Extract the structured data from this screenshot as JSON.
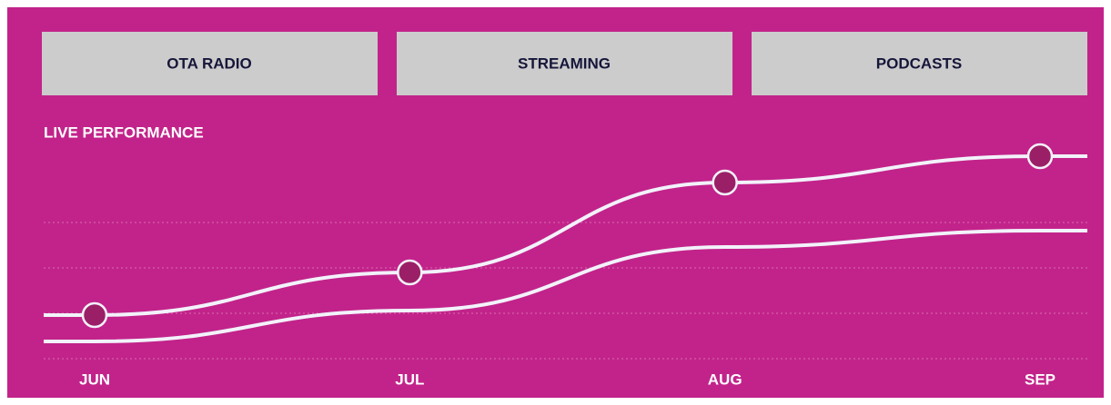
{
  "tabs": [
    "OTA RADIO",
    "STREAMING",
    "PODCASTS"
  ],
  "chart_data": {
    "type": "line",
    "title": "LIVE PERFORMANCE",
    "categories": [
      "JUN",
      "JUL",
      "AUG",
      "SEP"
    ],
    "series": [
      {
        "color": "#f2f2fa",
        "marker_color": "#9b1f66",
        "markers": true,
        "values": [
          24,
          47.5,
          97,
          111.5
        ]
      },
      {
        "color": "#f2f2fa",
        "markers": false,
        "values": [
          9.5,
          26.5,
          61.5,
          70.5
        ]
      }
    ],
    "ylim": [
      0,
      125
    ],
    "yticks": [
      0,
      25,
      50,
      75
    ],
    "grid": true
  }
}
